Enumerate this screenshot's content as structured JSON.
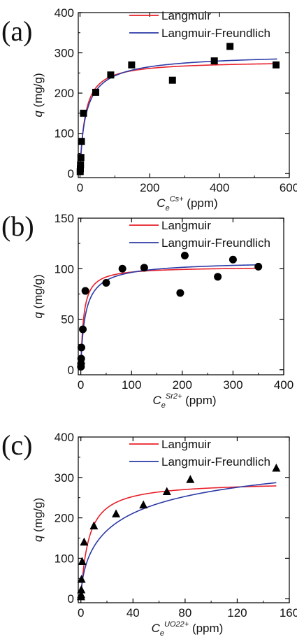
{
  "colors": {
    "langmuir": "#e8202a",
    "langmuir_freundlich": "#2b3aa6",
    "markers": "#000000",
    "axes": "#000000"
  },
  "chart_data": [
    {
      "panel": "(a)",
      "type": "scatter",
      "marker": "square",
      "xlabel_main": "C",
      "xlabel_sub": "e",
      "xlabel_sup": "Cs+",
      "xlabel_unit": " (ppm)",
      "ylabel_main": "q",
      "ylabel_unit": " (mg/g)",
      "xlim": [
        -5,
        600
      ],
      "ylim": [
        -10,
        400
      ],
      "xticks": [
        "0",
        "200",
        "400",
        "600"
      ],
      "xtick_values": [
        0,
        200,
        400,
        600
      ],
      "yticks": [
        "0",
        "100",
        "200",
        "300",
        "400"
      ],
      "ytick_values": [
        0,
        100,
        200,
        300,
        400
      ],
      "legend": [
        "Langmuir",
        "Langmuir-Freundlich"
      ],
      "points": [
        [
          0.5,
          5
        ],
        [
          1,
          12
        ],
        [
          1.5,
          22
        ],
        [
          2.5,
          40
        ],
        [
          4,
          80
        ],
        [
          10,
          150
        ],
        [
          45,
          202
        ],
        [
          88,
          245
        ],
        [
          148,
          270
        ],
        [
          265,
          232
        ],
        [
          385,
          280
        ],
        [
          430,
          316
        ],
        [
          562,
          270
        ]
      ],
      "fits": {
        "langmuir": {
          "qmax": 280,
          "K": 0.07,
          "xmax": 565
        },
        "langmuir_freundlich": {
          "qmax": 300,
          "K": 0.055,
          "n": 0.85,
          "xmax": 565
        }
      }
    },
    {
      "panel": "(b)",
      "type": "scatter",
      "marker": "circle",
      "xlabel_main": "C",
      "xlabel_sub": "e",
      "xlabel_sup": "Sr2+",
      "xlabel_unit": " (ppm)",
      "ylabel_main": "q",
      "ylabel_unit": " (mg/g)",
      "xlim": [
        -5,
        400
      ],
      "ylim": [
        -5,
        150
      ],
      "xticks": [
        "0",
        "100",
        "200",
        "300",
        "400"
      ],
      "xtick_values": [
        0,
        100,
        200,
        300,
        400
      ],
      "yticks": [
        "0",
        "50",
        "100",
        "150"
      ],
      "ytick_values": [
        0,
        50,
        100,
        150
      ],
      "legend": [
        "Langmuir",
        "Langmuir-Freundlich"
      ],
      "points": [
        [
          0.3,
          3
        ],
        [
          0.5,
          6
        ],
        [
          0.8,
          11
        ],
        [
          1.2,
          22
        ],
        [
          4,
          40
        ],
        [
          9,
          78
        ],
        [
          50,
          86
        ],
        [
          82,
          100
        ],
        [
          125,
          101
        ],
        [
          196,
          76
        ],
        [
          205,
          113
        ],
        [
          270,
          92
        ],
        [
          300,
          109
        ],
        [
          350,
          102
        ]
      ],
      "fits": {
        "langmuir": {
          "qmax": 102,
          "K": 0.18,
          "xmax": 352
        },
        "langmuir_freundlich": {
          "qmax": 108,
          "K": 0.11,
          "n": 0.88,
          "xmax": 352
        }
      }
    },
    {
      "panel": "(c)",
      "type": "scatter",
      "marker": "triangle",
      "xlabel_main": "C",
      "xlabel_sub": "e",
      "xlabel_sup": "UO22+",
      "xlabel_unit": " (ppm)",
      "ylabel_main": "q",
      "ylabel_unit": " (mg/g)",
      "xlim": [
        -2,
        160
      ],
      "ylim": [
        -10,
        400
      ],
      "xticks": [
        "0",
        "40",
        "80",
        "120",
        "160"
      ],
      "xtick_values": [
        0,
        40,
        80,
        120,
        160
      ],
      "yticks": [
        "0",
        "100",
        "200",
        "300",
        "400"
      ],
      "ytick_values": [
        0,
        100,
        200,
        300,
        400
      ],
      "legend": [
        "Langmuir",
        "Langmuir-Freundlich"
      ],
      "points": [
        [
          0.1,
          5
        ],
        [
          0.2,
          10
        ],
        [
          0.3,
          22
        ],
        [
          0.5,
          48
        ],
        [
          1,
          92
        ],
        [
          2.5,
          140
        ],
        [
          10,
          180
        ],
        [
          27,
          210
        ],
        [
          48,
          232
        ],
        [
          66,
          265
        ],
        [
          84,
          295
        ],
        [
          150,
          323
        ]
      ],
      "fits": {
        "langmuir": {
          "qmax": 290,
          "K": 0.17,
          "xmax": 150
        },
        "langmuir_freundlich": {
          "qmax": 400,
          "K": 0.03,
          "n": 0.62,
          "xmax": 150
        }
      }
    }
  ]
}
